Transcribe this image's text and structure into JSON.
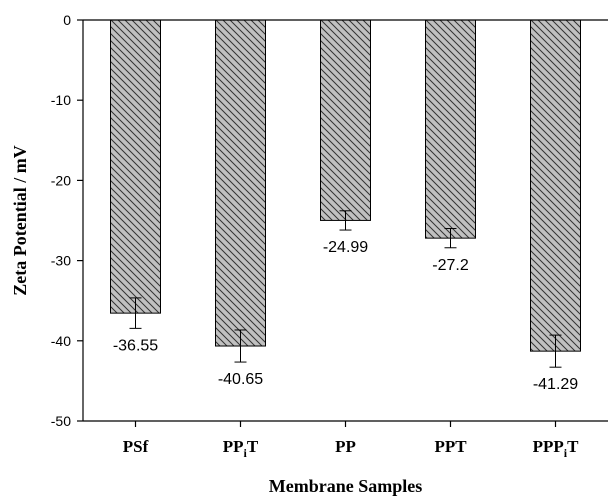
{
  "chart_data": {
    "type": "bar",
    "categories": [
      {
        "main": "PSf",
        "sub": "",
        "tail": ""
      },
      {
        "main": "PP",
        "sub": "i",
        "tail": "T"
      },
      {
        "main": "PP",
        "sub": "",
        "tail": ""
      },
      {
        "main": "PPT",
        "sub": "",
        "tail": ""
      },
      {
        "main": "PPP",
        "sub": "i",
        "tail": "T"
      }
    ],
    "values": [
      -36.55,
      -40.65,
      -24.99,
      -27.2,
      -41.29
    ],
    "value_labels": [
      "-36.55",
      "-40.65",
      "-24.99",
      "-27.2",
      "-41.29"
    ],
    "errors": [
      1.9,
      2.0,
      1.2,
      1.2,
      2.0
    ],
    "xlabel": "Membrane Samples",
    "ylabel": "Zeta Potential / mV",
    "ylim": [
      -50,
      0
    ],
    "yticks": [
      0,
      -10,
      -20,
      -30,
      -40,
      -50
    ],
    "bar_fill": "#c0c0c0",
    "hatch_color": "#333333",
    "grid": false,
    "legend": "none"
  }
}
